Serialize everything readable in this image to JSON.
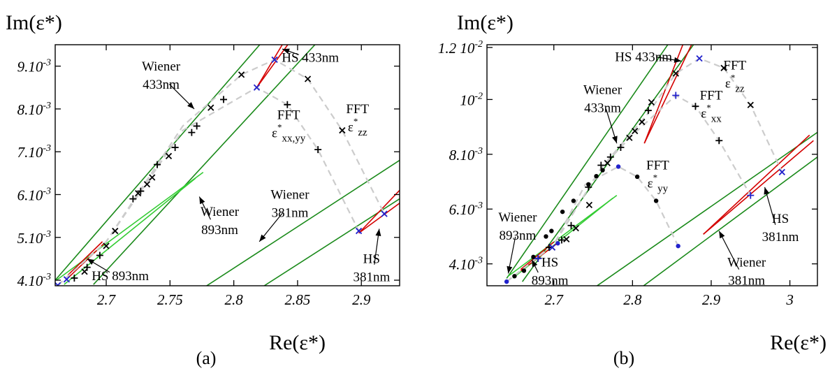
{
  "colors": {
    "hs": "#d40000",
    "wiener": "#1a8a1a",
    "wiener_893": "#33cc33",
    "fft": "#cccccc",
    "point_black": "#000000",
    "point_blue": "#2222cc"
  },
  "chart_data": [
    {
      "type": "scatter",
      "panel_label": "(a)",
      "xlabel": "Re(ε*)",
      "ylabel": "Im(ε*)",
      "xlim": [
        2.66,
        2.93
      ],
      "ylim": [
        0.00397,
        0.0096
      ],
      "x_ticks": [
        2.7,
        2.75,
        2.8,
        2.85,
        2.9
      ],
      "x_tick_labels": [
        "2.7",
        "2.75",
        "2.8",
        "2.85",
        "2.9"
      ],
      "y_ticks": [
        0.0041,
        0.0051,
        0.0061,
        0.0071,
        0.0081,
        0.0091
      ],
      "y_tick_labels": [
        "4.10-3",
        "5.10-3",
        "6.10-3",
        "7.10-3",
        "8.10-3",
        "9.10-3"
      ],
      "grid": false,
      "wiener_bounds": [
        {
          "name": "433nm",
          "color": "wiener",
          "lines": [
            [
              2.66,
              0.0041,
              2.832,
              0.01
            ],
            [
              2.69,
              0.004,
              2.876,
              0.01
            ]
          ]
        },
        {
          "name": "381nm",
          "color": "wiener",
          "lines": [
            [
              2.77,
              0.0038,
              2.93,
              0.0069
            ],
            [
              2.815,
              0.0038,
              2.93,
              0.006
            ]
          ]
        },
        {
          "name": "893nm",
          "color": "wiener_893",
          "lines": [
            [
              2.661,
              0.0041,
              2.776,
              0.00662
            ],
            [
              2.667,
              0.004,
              2.77,
              0.00648
            ]
          ]
        }
      ],
      "hs_bounds": [
        {
          "name": "433nm",
          "color": "hs",
          "lines": [
            [
              2.818,
              0.0086,
              2.846,
              0.01
            ],
            [
              2.818,
              0.0086,
              2.852,
              0.01
            ]
          ]
        },
        {
          "name": "381nm",
          "color": "hs",
          "lines": [
            [
              2.898,
              0.0052,
              2.93,
              0.0062
            ],
            [
              2.898,
              0.0052,
              2.93,
              0.0059
            ]
          ]
        },
        {
          "name": "893nm",
          "color": "hs",
          "lines": [
            [
              2.67,
              0.00422,
              2.697,
              0.005
            ],
            [
              2.67,
              0.00415,
              2.698,
              0.00495
            ]
          ]
        }
      ],
      "fft_paths": [
        {
          "name": "εxx,yy",
          "points": [
            [
              2.662,
              0.00398
            ],
            [
              2.7,
              0.005
            ],
            [
              2.76,
              0.0076
            ],
            [
              2.818,
              0.0086
            ],
            [
              2.842,
              0.0082
            ],
            [
              2.866,
              0.00715
            ],
            [
              2.898,
              0.00525
            ]
          ]
        },
        {
          "name": "εzz",
          "points": [
            [
              2.662,
              0.00398
            ],
            [
              2.7,
              0.005
            ],
            [
              2.76,
              0.0077
            ],
            [
              2.806,
              0.0089
            ],
            [
              2.832,
              0.00925
            ],
            [
              2.858,
              0.0088
            ],
            [
              2.885,
              0.0076
            ],
            [
              2.918,
              0.00565
            ]
          ]
        }
      ],
      "series": [
        {
          "name": "εxx,yy",
          "marker": "plus",
          "color": "point_black",
          "points": [
            [
              2.675,
              0.00415
            ],
            [
              2.685,
              0.0044
            ],
            [
              2.695,
              0.00468
            ],
            [
              2.721,
              0.006
            ],
            [
              2.727,
              0.00618
            ],
            [
              2.74,
              0.0068
            ],
            [
              2.754,
              0.0072
            ],
            [
              2.767,
              0.00755
            ],
            [
              2.771,
              0.0077
            ],
            [
              2.792,
              0.00832
            ],
            [
              2.842,
              0.0082
            ],
            [
              2.866,
              0.00715
            ]
          ]
        },
        {
          "name": "εzz",
          "marker": "cross",
          "color": "point_black",
          "points": [
            [
              2.683,
              0.0043
            ],
            [
              2.7,
              0.0049
            ],
            [
              2.707,
              0.00525
            ],
            [
              2.725,
              0.00613
            ],
            [
              2.732,
              0.00634
            ],
            [
              2.736,
              0.0065
            ],
            [
              2.749,
              0.007
            ],
            [
              2.782,
              0.00813
            ],
            [
              2.806,
              0.0089
            ],
            [
              2.858,
              0.0088
            ],
            [
              2.885,
              0.0076
            ]
          ]
        },
        {
          "name": "blue",
          "marker": "cross",
          "color": "point_blue",
          "points": [
            [
              2.662,
              0.00398
            ],
            [
              2.669,
              0.00412
            ],
            [
              2.818,
              0.0086
            ],
            [
              2.832,
              0.00925
            ],
            [
              2.898,
              0.00525
            ],
            [
              2.918,
              0.00565
            ]
          ]
        }
      ],
      "annotations": [
        {
          "lines": [
            "Wiener",
            "433nm"
          ],
          "x": 2.743,
          "y": 0.009,
          "arrow_to": [
            2.769,
            0.0081
          ]
        },
        {
          "lines": [
            "HS 433nm"
          ],
          "x": 2.86,
          "y": 0.0092,
          "arrow_to": [
            2.838,
            0.0095
          ]
        },
        {
          "lines": [
            "FFT",
            "ε*xx,yy"
          ],
          "x": 2.843,
          "y": 0.00786,
          "arrow_to": null
        },
        {
          "lines": [
            "FFT",
            "ε*zz"
          ],
          "x": 2.897,
          "y": 0.008,
          "arrow_to": null
        },
        {
          "lines": [
            "Wiener",
            "381nm"
          ],
          "x": 2.844,
          "y": 0.006,
          "arrow_to": [
            2.82,
            0.005
          ]
        },
        {
          "lines": [
            "Wiener",
            "893nm"
          ],
          "x": 2.789,
          "y": 0.0056,
          "arrow_to": [
            2.773,
            0.00605
          ]
        },
        {
          "lines": [
            "HS 893nm"
          ],
          "x": 2.711,
          "y": 0.0041,
          "arrow_to": [
            2.685,
            0.0046
          ]
        },
        {
          "lines": [
            "HS",
            "381nm"
          ],
          "x": 2.908,
          "y": 0.0045,
          "arrow_to": [
            2.914,
            0.0053
          ]
        }
      ]
    },
    {
      "type": "scatter",
      "panel_label": "(b)",
      "xlabel": "Re(ε*)",
      "ylabel": "Im(ε*)",
      "xlim": [
        2.615,
        3.035
      ],
      "ylim": [
        0.0033,
        0.0121
      ],
      "x_ticks": [
        2.7,
        2.8,
        2.9,
        3.0
      ],
      "x_tick_labels": [
        "2.7",
        "2.8",
        "2.9",
        "3"
      ],
      "y_ticks": [
        0.0041,
        0.0061,
        0.0081,
        0.0101,
        0.012
      ],
      "y_tick_labels": [
        "4.10-3",
        "6.10-3",
        "8.10-3",
        "10-2",
        "1.2 10-2"
      ],
      "grid": false,
      "wiener_bounds": [
        {
          "name": "433nm",
          "color": "wiener",
          "lines": [
            [
              2.64,
              0.00357,
              2.852,
              0.0124
            ],
            [
              2.66,
              0.00345,
              2.885,
              0.0124
            ]
          ]
        },
        {
          "name": "381nm",
          "color": "wiener",
          "lines": [
            [
              2.74,
              0.003,
              3.035,
              0.0089
            ],
            [
              2.8,
              0.003,
              3.035,
              0.008
            ]
          ]
        },
        {
          "name": "893nm",
          "color": "wiener_893",
          "lines": [
            [
              2.642,
              0.00365,
              2.78,
              0.0066
            ],
            [
              2.648,
              0.00358,
              2.775,
              0.0065
            ]
          ]
        }
      ],
      "hs_bounds": [
        {
          "name": "433nm",
          "color": "hs",
          "lines": [
            [
              2.815,
              0.0085,
              2.868,
              0.0124
            ],
            [
              2.815,
              0.0085,
              2.88,
              0.0124
            ]
          ]
        },
        {
          "name": "381nm",
          "color": "hs",
          "lines": [
            [
              2.89,
              0.00518,
              3.025,
              0.0088
            ],
            [
              2.89,
              0.00518,
              3.03,
              0.0086
            ]
          ]
        },
        {
          "name": "893nm",
          "color": "hs",
          "lines": [
            [
              2.658,
              0.0039,
              2.7,
              0.0049
            ],
            [
              2.658,
              0.00385,
              2.703,
              0.00482
            ]
          ]
        }
      ],
      "fft_paths": [
        {
          "name": "εzz",
          "points": [
            [
              2.64,
              0.00345
            ],
            [
              2.7,
              0.0048
            ],
            [
              2.76,
              0.0076
            ],
            [
              2.82,
              0.0096
            ],
            [
              2.855,
              0.01105
            ],
            [
              2.885,
              0.0116
            ],
            [
              2.916,
              0.01125
            ],
            [
              2.95,
              0.0099
            ],
            [
              2.99,
              0.00745
            ]
          ]
        },
        {
          "name": "εxx",
          "points": [
            [
              2.64,
              0.00345
            ],
            [
              2.7,
              0.0048
            ],
            [
              2.76,
              0.0076
            ],
            [
              2.8,
              0.0088
            ],
            [
              2.855,
              0.01025
            ],
            [
              2.88,
              0.00985
            ],
            [
              2.91,
              0.0086
            ],
            [
              2.95,
              0.0066
            ]
          ]
        },
        {
          "name": "εyy",
          "points": [
            [
              2.64,
              0.00345
            ],
            [
              2.7,
              0.0048
            ],
            [
              2.74,
              0.007
            ],
            [
              2.782,
              0.00765
            ],
            [
              2.806,
              0.00728
            ],
            [
              2.83,
              0.0064
            ],
            [
              2.858,
              0.00475
            ]
          ]
        }
      ],
      "series": [
        {
          "name": "εyy",
          "marker": "dot",
          "color": "point_black",
          "points": [
            [
              2.65,
              0.00365
            ],
            [
              2.662,
              0.00385
            ],
            [
              2.674,
              0.00435
            ],
            [
              2.69,
              0.0051
            ],
            [
              2.697,
              0.0053
            ],
            [
              2.711,
              0.006
            ],
            [
              2.725,
              0.0064
            ],
            [
              2.744,
              0.007
            ],
            [
              2.754,
              0.0073
            ],
            [
              2.762,
              0.00752
            ],
            [
              2.806,
              0.00728
            ],
            [
              2.83,
              0.0064
            ]
          ]
        },
        {
          "name": "εxx",
          "marker": "plus",
          "color": "point_black",
          "points": [
            [
              2.68,
              0.0043
            ],
            [
              2.694,
              0.0047
            ],
            [
              2.71,
              0.00497
            ],
            [
              2.722,
              0.0055
            ],
            [
              2.744,
              0.0069
            ],
            [
              2.76,
              0.0077
            ],
            [
              2.772,
              0.008
            ],
            [
              2.785,
              0.00835
            ],
            [
              2.82,
              0.0097
            ],
            [
              2.88,
              0.00985
            ],
            [
              2.91,
              0.0086
            ]
          ]
        },
        {
          "name": "εzz",
          "marker": "cross",
          "color": "point_black",
          "points": [
            [
              2.698,
              0.0047
            ],
            [
              2.716,
              0.005
            ],
            [
              2.728,
              0.0054
            ],
            [
              2.745,
              0.00625
            ],
            [
              2.768,
              0.00778
            ],
            [
              2.796,
              0.0087
            ],
            [
              2.803,
              0.00895
            ],
            [
              2.812,
              0.00928
            ],
            [
              2.824,
              0.01
            ],
            [
              2.855,
              0.01105
            ],
            [
              2.916,
              0.01125
            ],
            [
              2.95,
              0.0099
            ]
          ]
        },
        {
          "name": "blue-dot",
          "marker": "dot",
          "color": "point_blue",
          "points": [
            [
              2.64,
              0.00345
            ],
            [
              2.705,
              0.00485
            ],
            [
              2.782,
              0.00765
            ],
            [
              2.858,
              0.00475
            ]
          ]
        },
        {
          "name": "blue-plus",
          "marker": "plus",
          "color": "point_blue",
          "points": [
            [
              2.68,
              0.0043
            ],
            [
              2.855,
              0.01025
            ],
            [
              2.95,
              0.0066
            ]
          ]
        },
        {
          "name": "blue-cross",
          "marker": "cross",
          "color": "point_blue",
          "points": [
            [
              2.698,
              0.0047
            ],
            [
              2.885,
              0.0116
            ],
            [
              2.99,
              0.00745
            ]
          ]
        }
      ],
      "annotations": [
        {
          "lines": [
            "HS 433nm"
          ],
          "x": 2.814,
          "y": 0.0115,
          "arrow_to": [
            2.862,
            0.0115
          ]
        },
        {
          "lines": [
            "Wiener",
            "433nm"
          ],
          "x": 2.762,
          "y": 0.0103,
          "arrow_to": [
            2.78,
            0.0085
          ]
        },
        {
          "lines": [
            "FFT",
            "ε*zz"
          ],
          "x": 2.93,
          "y": 0.0112,
          "arrow_to": null
        },
        {
          "lines": [
            "FFT",
            "ε*xx"
          ],
          "x": 2.9,
          "y": 0.0101,
          "arrow_to": null
        },
        {
          "lines": [
            "FFT",
            "ε*yy"
          ],
          "x": 2.832,
          "y": 0.00755,
          "arrow_to": null
        },
        {
          "lines": [
            "Wiener",
            "893nm"
          ],
          "x": 2.654,
          "y": 0.00565,
          "arrow_to": [
            2.642,
            0.00375
          ]
        },
        {
          "lines": [
            "HS",
            "893nm"
          ],
          "x": 2.695,
          "y": 0.004,
          "arrow_to": [
            2.672,
            0.00425
          ]
        },
        {
          "lines": [
            "HS",
            "381nm"
          ],
          "x": 2.988,
          "y": 0.0056,
          "arrow_to": [
            2.968,
            0.0069
          ]
        },
        {
          "lines": [
            "Wiener",
            "381nm"
          ],
          "x": 2.945,
          "y": 0.004,
          "arrow_to": [
            2.91,
            0.0053
          ]
        }
      ]
    }
  ]
}
